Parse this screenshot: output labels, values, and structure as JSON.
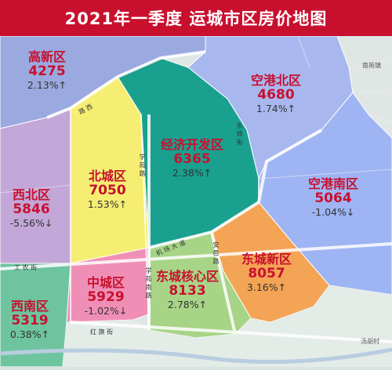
{
  "title": "2021年一季度  运城市区房价地图",
  "colors": {
    "title_bg": "#c8102e",
    "price_text": "#c8102e",
    "name_text": "#c8102e",
    "change_text": "#333333"
  },
  "districts": [
    {
      "id": "gaoxin",
      "name": "高新区",
      "price": "4275",
      "change": "2.13%↑",
      "fill": "#9aa9df"
    },
    {
      "id": "konggangbei",
      "name": "空港北区",
      "price": "4680",
      "change": "1.74%↑",
      "fill": "#a8b8ef"
    },
    {
      "id": "jingji",
      "name": "经济开发区",
      "price": "6365",
      "change": "2.38%↑",
      "fill": "#1aa08f"
    },
    {
      "id": "beicheng",
      "name": "北城区",
      "price": "7050",
      "change": "1.53%↑",
      "fill": "#f6ee73"
    },
    {
      "id": "xibei",
      "name": "西北区",
      "price": "5846",
      "change": "-5.56%↓",
      "fill": "#c2a7d8"
    },
    {
      "id": "konggangnan",
      "name": "空港南区",
      "price": "5064",
      "change": "-1.04%↓",
      "fill": "#9fb4f3"
    },
    {
      "id": "dongchengxin",
      "name": "东城新区",
      "price": "8057",
      "change": "3.16%↑",
      "fill": "#f3a455"
    },
    {
      "id": "zhongcheng",
      "name": "中城区",
      "price": "5929",
      "change": "-1.02%↓",
      "fill": "#ef8fb6"
    },
    {
      "id": "dongchenghexin",
      "name": "东城核心区",
      "price": "8133",
      "change": "2.78%↑",
      "fill": "#a7d486"
    },
    {
      "id": "xinan",
      "name": "西南区",
      "price": "5319",
      "change": "0.38%↑",
      "fill": "#6fc4a0"
    }
  ],
  "roads": [
    {
      "id": "gongnong",
      "label": "工 农 街"
    },
    {
      "id": "jichang",
      "label": "机 场 大 道"
    },
    {
      "id": "xuefu",
      "label": "学 苑 路"
    },
    {
      "id": "xueyuan2",
      "label": "学 苑 南 路"
    },
    {
      "id": "anyi",
      "label": "安 邑 路"
    },
    {
      "id": "hongqi",
      "label": "红 旗 街"
    },
    {
      "id": "dongjiao",
      "label": "东 郊 街"
    },
    {
      "id": "luxi",
      "label": "路 西"
    }
  ],
  "places": [
    {
      "id": "tangpu",
      "label": "汤胡村"
    },
    {
      "id": "nanyuan",
      "label": "南苑镇"
    }
  ]
}
